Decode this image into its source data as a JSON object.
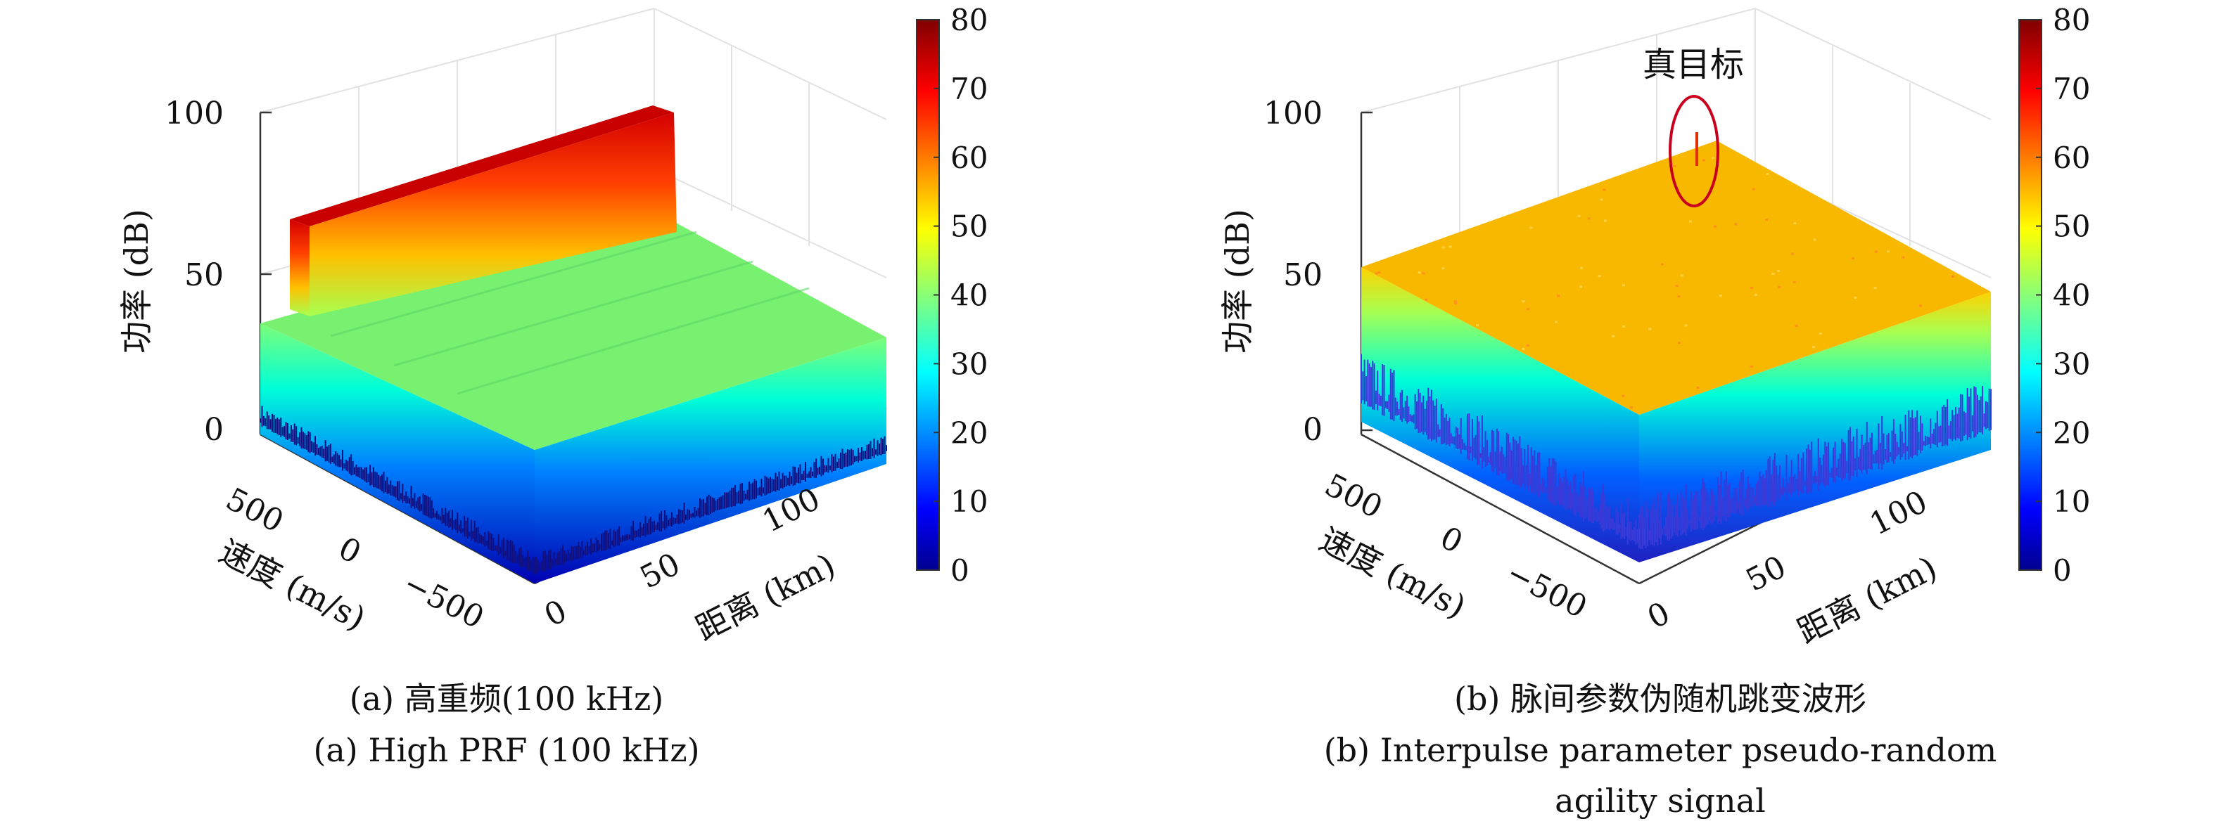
{
  "chart_data": [
    {
      "type": "surface3d",
      "panel": "a",
      "title": "",
      "caption_cn": "(a) 高重频(100 kHz)",
      "caption_en": "(a) High PRF (100 kHz)",
      "zlabel": "功率 (dB)",
      "xlabel": "距离 (km)",
      "ylabel": "速度 (m/s)",
      "z_ticks": [
        "0",
        "50",
        "100"
      ],
      "x_ticks": [
        "0",
        "50",
        "100"
      ],
      "y_ticks": [
        "500",
        "0",
        "−500"
      ],
      "zlim": [
        0,
        100
      ],
      "xlim": [
        0,
        150
      ],
      "ylim": [
        -800,
        800
      ],
      "colorbar": {
        "min": 0,
        "max": 80,
        "ticks": [
          "0",
          "10",
          "20",
          "30",
          "40",
          "50",
          "60",
          "70",
          "80"
        ]
      },
      "surface": {
        "floor_db": 41,
        "ridge_db": 65,
        "ridge_range_km": [
          0,
          15
        ],
        "noise_min_db": 0
      }
    },
    {
      "type": "surface3d",
      "panel": "b",
      "title": "",
      "caption_cn": "(b) 脉间参数伪随机跳变波形",
      "caption_en_1": "(b) Interpulse parameter pseudo-random",
      "caption_en_2": "agility signal",
      "annotation": "真目标",
      "zlabel": "功率 (dB)",
      "xlabel": "距离 (km)",
      "ylabel": "速度 (m/s)",
      "z_ticks": [
        "0",
        "50",
        "100"
      ],
      "x_ticks": [
        "0",
        "50",
        "100"
      ],
      "y_ticks": [
        "500",
        "0",
        "−500"
      ],
      "zlim": [
        0,
        100
      ],
      "xlim": [
        0,
        150
      ],
      "ylim": [
        -800,
        800
      ],
      "colorbar": {
        "min": 0,
        "max": 80,
        "ticks": [
          "0",
          "10",
          "20",
          "30",
          "40",
          "50",
          "60",
          "70",
          "80"
        ]
      },
      "surface": {
        "floor_db": 55,
        "target_db": 85,
        "noise_min_db": 5
      }
    }
  ]
}
